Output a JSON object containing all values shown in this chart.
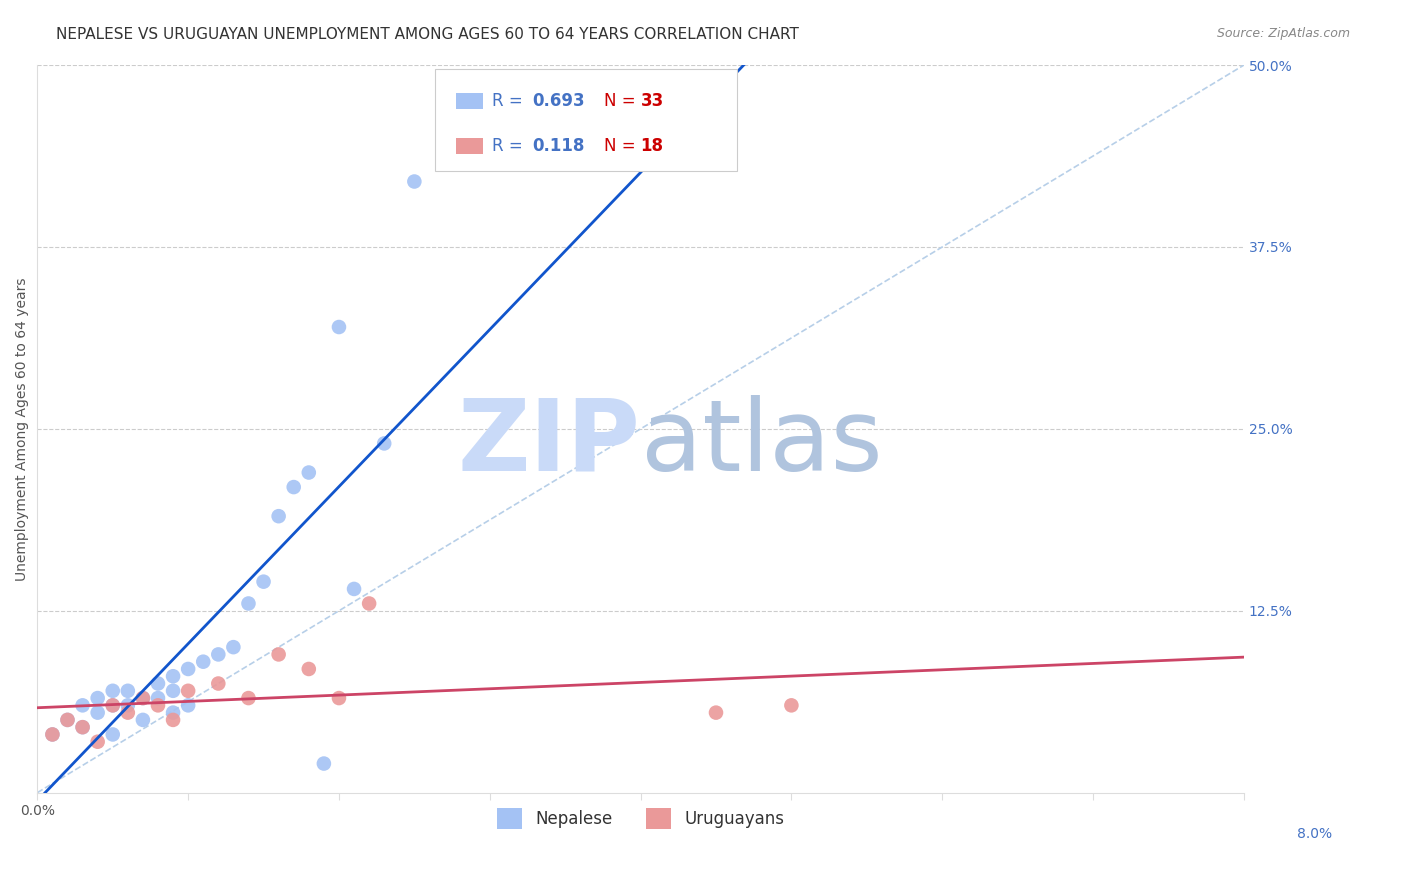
{
  "title": "NEPALESE VS URUGUAYAN UNEMPLOYMENT AMONG AGES 60 TO 64 YEARS CORRELATION CHART",
  "source": "Source: ZipAtlas.com",
  "ylabel": "Unemployment Among Ages 60 to 64 years",
  "nepalese_x": [
    0.001,
    0.002,
    0.003,
    0.003,
    0.004,
    0.004,
    0.005,
    0.005,
    0.005,
    0.006,
    0.006,
    0.007,
    0.007,
    0.008,
    0.008,
    0.009,
    0.009,
    0.009,
    0.01,
    0.01,
    0.011,
    0.012,
    0.013,
    0.014,
    0.015,
    0.016,
    0.017,
    0.018,
    0.019,
    0.02,
    0.021,
    0.023,
    0.025
  ],
  "nepalese_y": [
    0.04,
    0.05,
    0.06,
    0.045,
    0.055,
    0.065,
    0.06,
    0.07,
    0.04,
    0.07,
    0.06,
    0.065,
    0.05,
    0.075,
    0.065,
    0.08,
    0.07,
    0.055,
    0.085,
    0.06,
    0.09,
    0.095,
    0.1,
    0.13,
    0.145,
    0.19,
    0.21,
    0.22,
    0.02,
    0.32,
    0.14,
    0.24,
    0.42
  ],
  "uruguayan_x": [
    0.001,
    0.002,
    0.003,
    0.004,
    0.005,
    0.006,
    0.007,
    0.008,
    0.009,
    0.01,
    0.012,
    0.014,
    0.016,
    0.018,
    0.02,
    0.022,
    0.045,
    0.05
  ],
  "uruguayan_y": [
    0.04,
    0.05,
    0.045,
    0.035,
    0.06,
    0.055,
    0.065,
    0.06,
    0.05,
    0.07,
    0.075,
    0.065,
    0.095,
    0.085,
    0.065,
    0.13,
    0.055,
    0.06
  ],
  "nepalese_R": 0.693,
  "nepalese_N": 33,
  "uruguayan_R": 0.118,
  "uruguayan_N": 18,
  "nepalese_color": "#a4c2f4",
  "uruguayan_color": "#ea9999",
  "nepalese_line_color": "#1155cc",
  "uruguayan_line_color": "#cc4466",
  "diagonal_color": "#b7cfe8",
  "xlim": [
    0.0,
    0.08
  ],
  "ylim": [
    0.0,
    0.5
  ],
  "right_yticks": [
    0.125,
    0.25,
    0.375,
    0.5
  ],
  "right_yticklabels": [
    "12.5%",
    "25.0%",
    "37.5%",
    "50.0%"
  ],
  "grid_color": "#cccccc",
  "background_color": "#ffffff",
  "watermark_zip_color": "#c9daf8",
  "watermark_atlas_color": "#b0c4de",
  "title_fontsize": 11,
  "source_fontsize": 9,
  "axis_label_fontsize": 10,
  "tick_fontsize": 10
}
